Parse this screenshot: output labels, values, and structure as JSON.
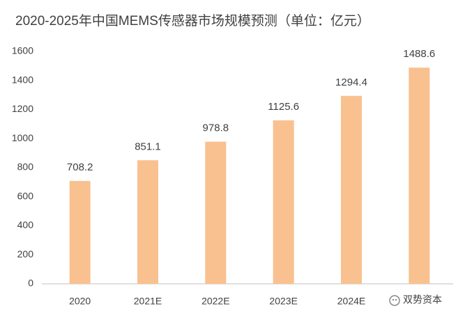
{
  "chart_data": {
    "type": "bar",
    "title": "2020-2025年中国MEMS传感器市场规模预测（单位：亿元）",
    "categories": [
      "2020",
      "2021E",
      "2022E",
      "2023E",
      "2024E",
      null
    ],
    "values": [
      708.2,
      851.1,
      978.8,
      1125.6,
      1294.4,
      1488.6
    ],
    "color": "#f9c18f",
    "ylim": [
      0,
      1600
    ],
    "yticks": [
      0,
      200,
      400,
      600,
      800,
      1000,
      1200,
      1400,
      1600
    ],
    "grid": false
  },
  "watermark": "双势资本"
}
